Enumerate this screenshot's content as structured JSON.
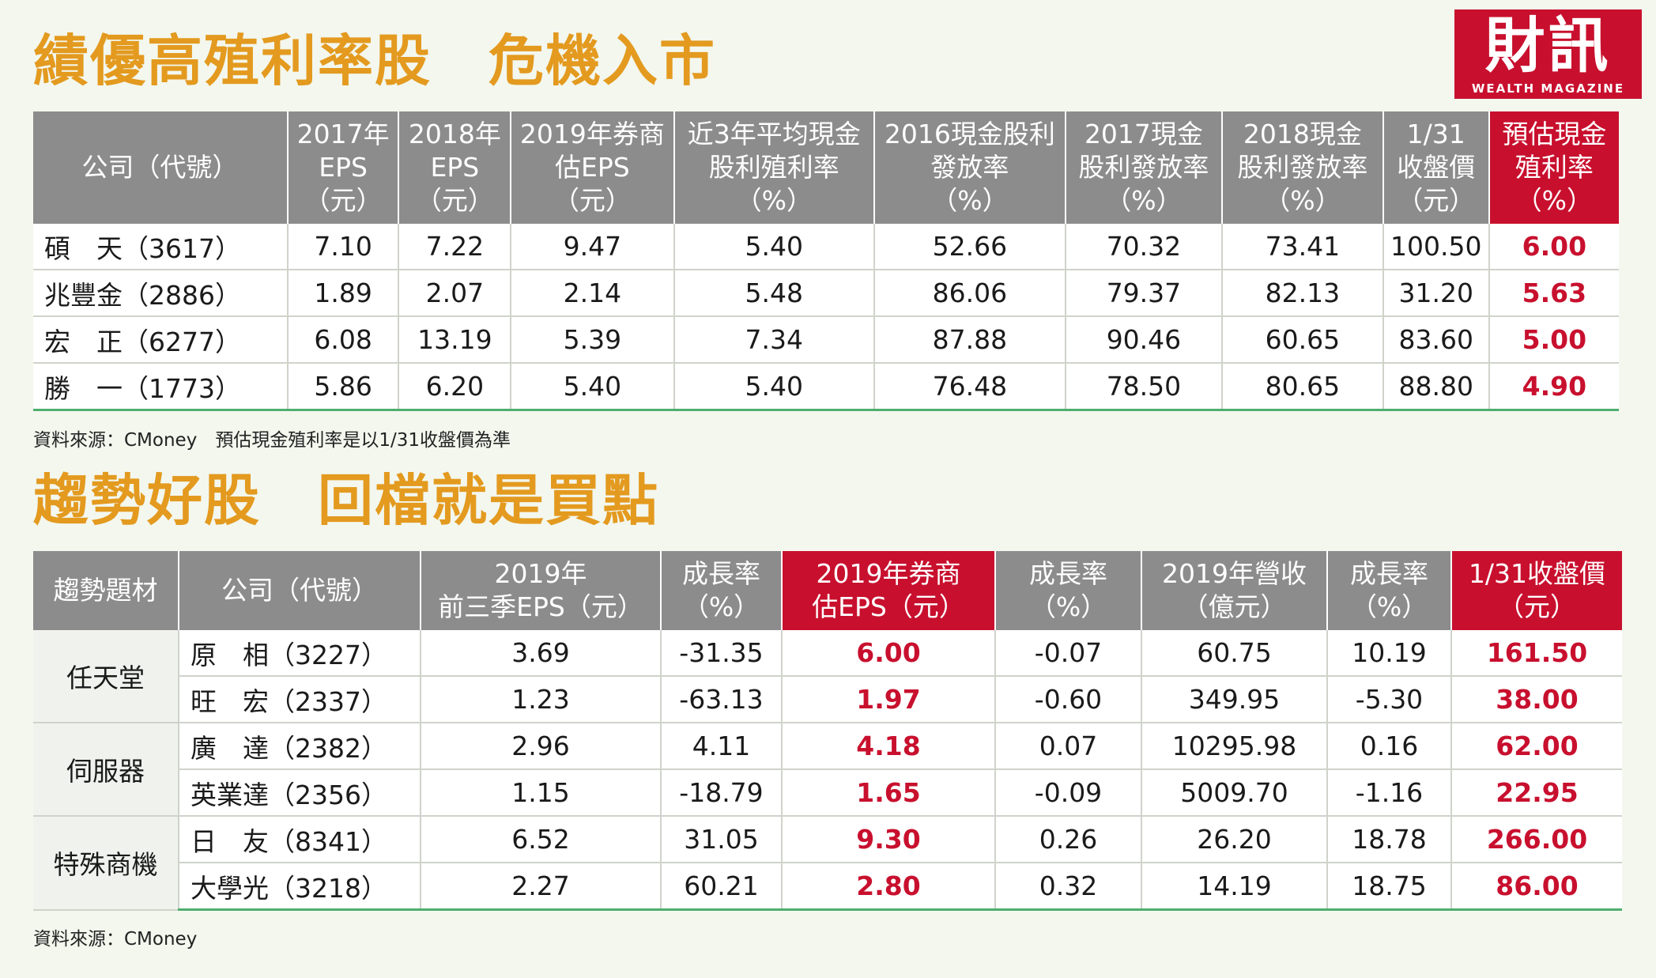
{
  "section1": {
    "title": "績優高殖利率股　危機入市",
    "headers": [
      "公司（代號）",
      "2017年\nEPS\n（元）",
      "2018年\nEPS\n（元）",
      "2019年券商\n估EPS\n（元）",
      "近3年平均現金\n股利殖利率\n（%）",
      "2016現金股利\n發放率\n（%）",
      "2017現金\n股利發放率\n（%）",
      "2018現金\n股利發放率\n（%）",
      "1/31\n收盤價\n（元）",
      "預估現金\n殖利率\n（%）"
    ],
    "rows": [
      [
        "碩　天（3617）",
        "7.10",
        "7.22",
        "9.47",
        "5.40",
        "52.66",
        "70.32",
        "73.41",
        "100.50",
        "6.00"
      ],
      [
        "兆豐金（2886）",
        "1.89",
        "2.07",
        "2.14",
        "5.48",
        "86.06",
        "79.37",
        "82.13",
        "31.20",
        "5.63"
      ],
      [
        "宏　正（6277）",
        "6.08",
        "13.19",
        "5.39",
        "7.34",
        "87.88",
        "90.46",
        "60.65",
        "83.60",
        "5.00"
      ],
      [
        "勝　一（1773）",
        "5.86",
        "6.20",
        "5.40",
        "5.40",
        "76.48",
        "78.50",
        "80.65",
        "88.80",
        "4.90"
      ]
    ],
    "source": "資料來源：CMoney　預估現金殖利率是以1/31收盤價為準"
  },
  "section2": {
    "title": "趨勢好股　回檔就是買點",
    "headers": [
      "趨勢題材",
      "公司（代號）",
      "2019年\n前三季EPS（元）",
      "成長率\n（%）",
      "2019年券商\n估EPS（元）",
      "成長率\n（%）",
      "2019年營收\n（億元）",
      "成長率\n（%）",
      "1/31收盤價\n（元）"
    ],
    "groups": [
      {
        "theme": "任天堂",
        "rows": [
          [
            "原　相（3227）",
            "3.69",
            "-31.35",
            "6.00",
            "-0.07",
            "60.75",
            "10.19",
            "161.50"
          ],
          [
            "旺　宏（2337）",
            "1.23",
            "-63.13",
            "1.97",
            "-0.60",
            "349.95",
            "-5.30",
            "38.00"
          ]
        ]
      },
      {
        "theme": "伺服器",
        "rows": [
          [
            "廣　達（2382）",
            "2.96",
            "4.11",
            "4.18",
            "0.07",
            "10295.98",
            "0.16",
            "62.00"
          ],
          [
            "英業達（2356）",
            "1.15",
            "-18.79",
            "1.65",
            "-0.09",
            "5009.70",
            "-1.16",
            "22.95"
          ]
        ]
      },
      {
        "theme": "特殊商機",
        "rows": [
          [
            "日　友（8341）",
            "6.52",
            "31.05",
            "9.30",
            "0.26",
            "26.20",
            "18.78",
            "266.00"
          ],
          [
            "大學光（3218）",
            "2.27",
            "60.21",
            "2.80",
            "0.32",
            "14.19",
            "18.75",
            "86.00"
          ]
        ]
      }
    ],
    "source": "資料來源：CMoney"
  },
  "logo": {
    "main": "財訊",
    "sub": "WEALTH MAGAZINE"
  },
  "colors": {
    "title": "#e39a1f",
    "highlight": "#c8102e",
    "header": "#8c8c8c"
  }
}
